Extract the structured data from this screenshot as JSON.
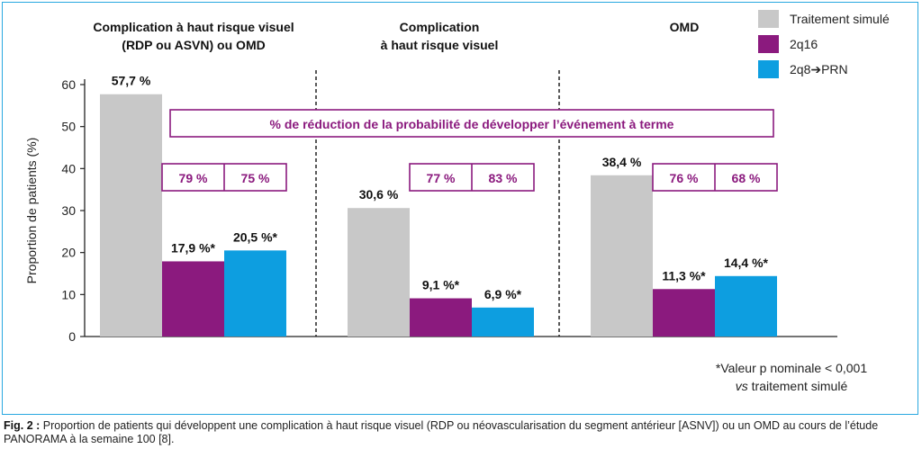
{
  "chart_data": {
    "type": "bar",
    "ylabel": "Proportion de patients (%)",
    "ylim": [
      0,
      60
    ],
    "yticks": [
      "0",
      "10",
      "20",
      "30",
      "40",
      "50",
      "60"
    ],
    "groups": [
      {
        "title": [
          "Complication à haut risque visuel",
          "(RDP ou ASVN) ou OMD"
        ],
        "values": [
          57.7,
          17.9,
          20.5
        ],
        "value_labels": [
          "57,7 %",
          "17,9 %*",
          "20,5 %*"
        ],
        "reductions": [
          "79 %",
          "75 %"
        ]
      },
      {
        "title": [
          "Complication",
          "à haut risque visuel"
        ],
        "values": [
          30.6,
          9.1,
          6.9
        ],
        "value_labels": [
          "30,6 %",
          "9,1 %*",
          "6,9 %*"
        ],
        "reductions": [
          "77 %",
          "83 %"
        ]
      },
      {
        "title": [
          "OMD"
        ],
        "values": [
          38.4,
          11.3,
          14.4
        ],
        "value_labels": [
          "38,4 %",
          "11,3 %*",
          "14,4 %*"
        ],
        "reductions": [
          "76 %",
          "68 %"
        ]
      }
    ],
    "series": [
      {
        "name": "Traitement simulé",
        "color": "#c8c8c8"
      },
      {
        "name": "2q16",
        "color": "#8b1a7e"
      },
      {
        "name": "2q8➔PRN",
        "color": "#0d9ee0"
      }
    ],
    "reduction_banner": "% de réduction de la probabilité de développer l’événement à terme",
    "accent_color": "#8b1a7e",
    "footnote": [
      "*Valeur p nominale < 0,001",
      "vs traitement simulé"
    ],
    "legend_position": "top-right",
    "grid": false
  },
  "caption": {
    "label": "Fig. 2 :",
    "text": "Proportion de patients qui développent une complication à haut risque visuel (RDP ou néovascularisation du segment antérieur [ASNV]) ou un OMD au cours de l’étude PANORAMA à la semaine 100 [8]."
  }
}
